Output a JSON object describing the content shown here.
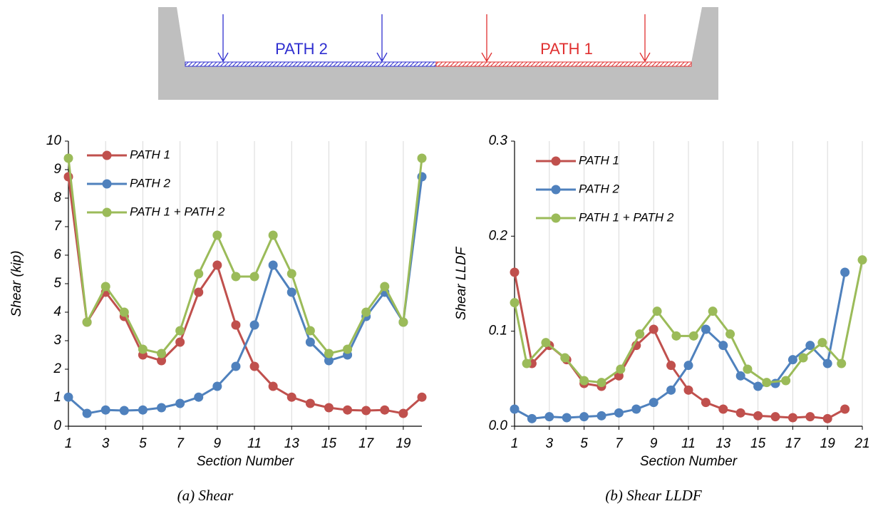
{
  "diagram": {
    "labels": [
      "PATH 2",
      "PATH 1"
    ]
  },
  "chart_data": [
    {
      "type": "line",
      "caption": "(a) Shear",
      "xlabel": "Section Number",
      "ylabel": "Shear (kip)",
      "x": [
        1,
        2,
        3,
        4,
        5,
        6,
        7,
        8,
        9,
        10,
        11,
        12,
        13,
        14,
        15,
        16,
        17,
        18,
        19,
        20
      ],
      "series": [
        {
          "name": "PATH 1",
          "color": "#c0504d",
          "values": [
            8.75,
            3.65,
            4.7,
            3.85,
            2.5,
            2.3,
            2.95,
            4.7,
            5.65,
            3.55,
            2.1,
            1.4,
            1.02,
            0.8,
            0.65,
            0.57,
            0.55,
            0.57,
            0.45,
            1.02
          ]
        },
        {
          "name": "PATH 2",
          "color": "#4f81bd",
          "values": [
            1.02,
            0.45,
            0.57,
            0.55,
            0.57,
            0.65,
            0.8,
            1.02,
            1.4,
            2.1,
            3.55,
            5.65,
            4.7,
            2.95,
            2.3,
            2.5,
            3.85,
            4.7,
            3.65,
            8.75
          ]
        },
        {
          "name": "PATH 1 + PATH 2",
          "color": "#9bbb59",
          "values": [
            9.4,
            3.65,
            4.9,
            4.0,
            2.7,
            2.55,
            3.35,
            5.35,
            6.7,
            5.25,
            5.25,
            6.7,
            5.35,
            3.35,
            2.55,
            2.7,
            4.0,
            4.9,
            3.65,
            9.4
          ]
        }
      ],
      "xlim": [
        1,
        20
      ],
      "xticks": [
        1,
        3,
        5,
        7,
        9,
        11,
        13,
        15,
        17,
        19
      ],
      "ylim": [
        0,
        10
      ],
      "yticks": [
        0,
        1,
        2,
        3,
        4,
        5,
        6,
        7,
        8,
        9,
        10
      ],
      "grid": true,
      "legend": "upper-left"
    },
    {
      "type": "line",
      "caption": "(b) Shear LLDF",
      "xlabel": "Section Number",
      "ylabel": "Shear LLDF",
      "x": [
        1,
        2,
        3,
        4,
        5,
        6,
        7,
        8,
        9,
        10,
        11,
        12,
        13,
        14,
        15,
        16,
        17,
        18,
        19,
        20
      ],
      "series": [
        {
          "name": "PATH 1",
          "color": "#c0504d",
          "values": [
            0.162,
            0.066,
            0.085,
            0.07,
            0.045,
            0.042,
            0.053,
            0.085,
            0.102,
            0.064,
            0.038,
            0.025,
            0.018,
            0.014,
            0.011,
            0.01,
            0.009,
            0.01,
            0.008,
            0.018
          ]
        },
        {
          "name": "PATH 2",
          "color": "#4f81bd",
          "values": [
            0.018,
            0.008,
            0.01,
            0.009,
            0.01,
            0.011,
            0.014,
            0.018,
            0.025,
            0.038,
            0.064,
            0.102,
            0.085,
            0.053,
            0.042,
            0.045,
            0.07,
            0.085,
            0.066,
            0.162
          ]
        },
        {
          "name": "PATH 1 + PATH 2",
          "color": "#9bbb59",
          "x": [
            1,
            1.7,
            2.8,
            3.9,
            5,
            6,
            7.1,
            8.2,
            9.2,
            10.3,
            11.3,
            12.4,
            13.4,
            14.4,
            15.5,
            16.6,
            17.6,
            18.7,
            19.8,
            21
          ],
          "values": [
            0.13,
            0.066,
            0.088,
            0.072,
            0.048,
            0.046,
            0.06,
            0.097,
            0.121,
            0.095,
            0.095,
            0.121,
            0.097,
            0.06,
            0.046,
            0.048,
            0.072,
            0.088,
            0.066,
            0.175
          ]
        }
      ],
      "xlim": [
        1,
        21
      ],
      "xticks": [
        1,
        3,
        5,
        7,
        9,
        11,
        13,
        15,
        17,
        19,
        21
      ],
      "ylim": [
        0,
        0.3
      ],
      "yticks": [
        {
          "value": 0,
          "label": "0.0"
        },
        0.1,
        0.2,
        0.3
      ],
      "grid": true,
      "legend": "upper-left"
    }
  ]
}
